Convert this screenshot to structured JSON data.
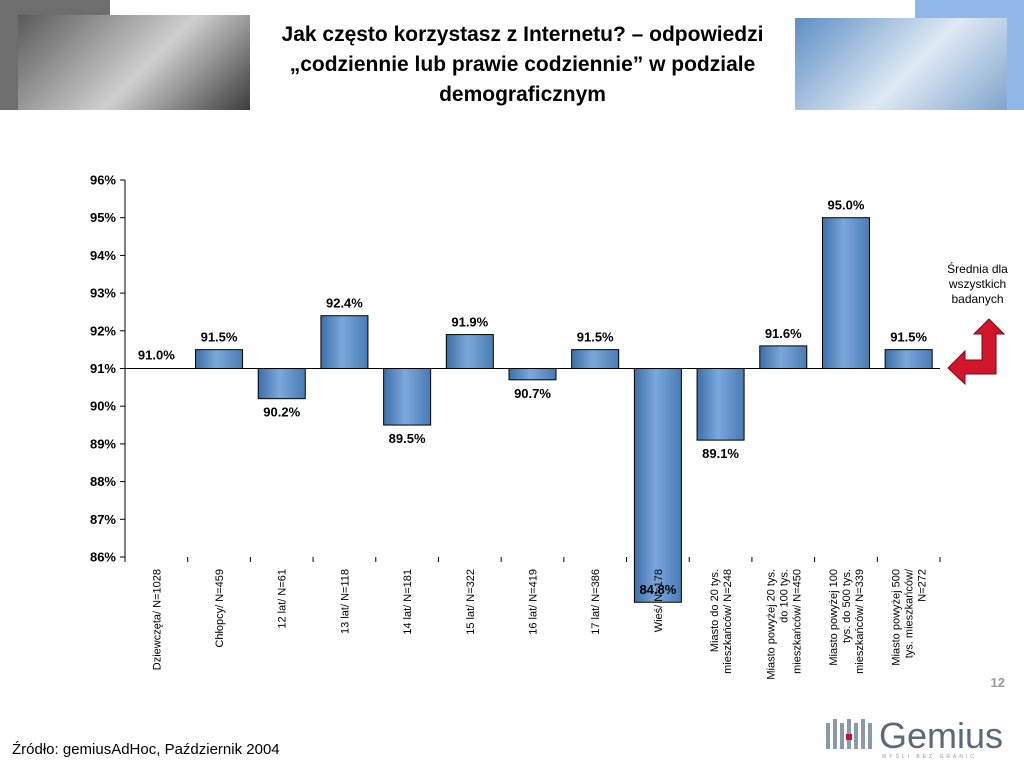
{
  "title": "Jak często korzystasz z Internetu? – odpowiedzi „codziennie lub prawie codziennie” w podziale demograficznym",
  "average_note": "Średnia dla wszystkich badanych",
  "page_number": "12",
  "source": "Źródło: gemiusAdHoc, Październik 2004",
  "logo": {
    "name": "Gemius",
    "tagline": "MYŚLI BEZ GRANIC"
  },
  "colors": {
    "bar": "#7aa8dc",
    "arrow": "#d1152a"
  },
  "chart_data": {
    "type": "bar",
    "categories": [
      "Dziewczęta/ N=1028",
      "Chłopcy/ N=459",
      "12 lat/ N=61",
      "13 lat/ N=118",
      "14 lat/ N=181",
      "15 lat/ N=322",
      "16 lat/ N=419",
      "17 lat/ N=386",
      "Wieś/ N=178",
      "Miasto do 20 tys. mieszkańców/ N=248",
      "Miasto powyżej 20 tys. do 100 tys. mieszkańców/ N=450",
      "Miasto powyżej 100 tys. do 500 tys. mieszkańców/ N=339",
      "Miasto powyżej 500 tys. mieszkańców/ N=272"
    ],
    "values": [
      91.0,
      91.5,
      90.2,
      92.4,
      89.5,
      91.9,
      90.7,
      91.5,
      84.8,
      89.1,
      91.6,
      95.0,
      91.5
    ],
    "value_labels": [
      "91.0%",
      "91.5%",
      "90.2%",
      "92.4%",
      "89.5%",
      "91.9%",
      "90.7%",
      "91.5%",
      "84.8%",
      "89.1%",
      "91.6%",
      "95.0%",
      "91.5%"
    ],
    "baseline": 91,
    "ylim": [
      86,
      96
    ],
    "y_ticks": [
      "86%",
      "87%",
      "88%",
      "89%",
      "90%",
      "91%",
      "92%",
      "93%",
      "94%",
      "95%",
      "96%"
    ],
    "xlabel": "",
    "ylabel": "",
    "grid": false,
    "legend": "none"
  }
}
